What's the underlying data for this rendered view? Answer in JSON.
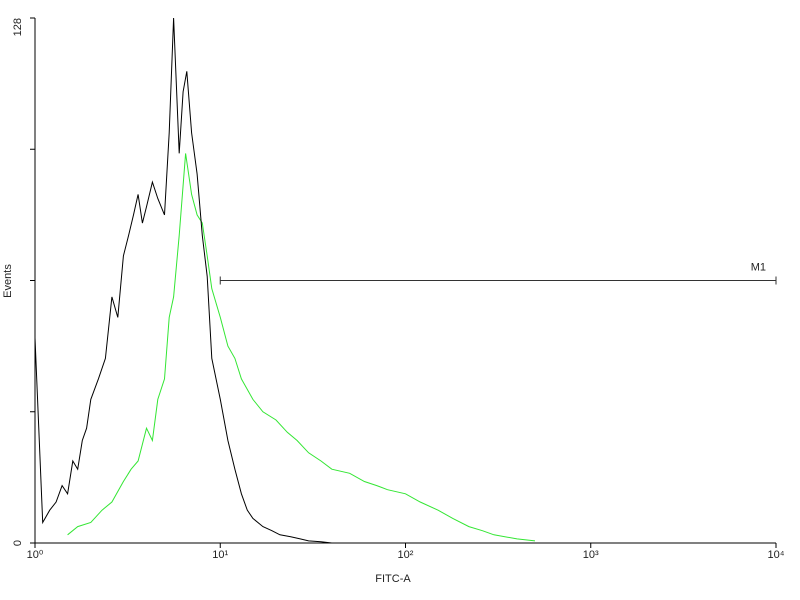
{
  "chart_data": {
    "type": "line",
    "x_label": "FITC-A",
    "y_label": "Events",
    "xscale": "log",
    "xlim": [
      1,
      10000
    ],
    "xticks": [
      {
        "value": 1,
        "label": "10⁰"
      },
      {
        "value": 10,
        "label": "10¹"
      },
      {
        "value": 100,
        "label": "10²"
      },
      {
        "value": 1000,
        "label": "10³"
      },
      {
        "value": 10000,
        "label": "10⁴"
      }
    ],
    "ylim": [
      0,
      128
    ],
    "yticks": [
      0,
      128
    ],
    "yminorticks": [
      32,
      64,
      96
    ],
    "gate": {
      "label": "M1",
      "from": 10,
      "to": 10000,
      "level": 64
    },
    "series": [
      {
        "color": "#000000",
        "x": [
          1,
          1.1,
          1.2,
          1.3,
          1.4,
          1.5,
          1.6,
          1.7,
          1.8,
          1.9,
          2.0,
          2.2,
          2.4,
          2.6,
          2.8,
          3.0,
          3.2,
          3.4,
          3.6,
          3.8,
          4.0,
          4.3,
          4.6,
          5.0,
          5.3,
          5.6,
          6.0,
          6.3,
          6.6,
          7.0,
          7.5,
          8,
          8.5,
          9,
          10,
          11,
          12,
          13,
          14,
          15,
          17,
          19,
          21,
          24,
          27,
          30,
          35,
          40
        ],
        "values": [
          50,
          5,
          8,
          10,
          14,
          12,
          20,
          18,
          25,
          28,
          35,
          40,
          45,
          60,
          55,
          70,
          75,
          80,
          85,
          78,
          82,
          88,
          84,
          80,
          100,
          128,
          95,
          110,
          115,
          100,
          90,
          75,
          65,
          45,
          35,
          25,
          18,
          12,
          8,
          6,
          4,
          3,
          2,
          1.5,
          1,
          0.5,
          0.3,
          0
        ]
      },
      {
        "color": "#33e633",
        "x": [
          1.5,
          1.7,
          2,
          2.3,
          2.6,
          3,
          3.3,
          3.6,
          4,
          4.3,
          4.6,
          5,
          5.3,
          5.6,
          6,
          6.5,
          7,
          7.5,
          8,
          8.5,
          9,
          10,
          11,
          12,
          13,
          15,
          17,
          20,
          23,
          26,
          30,
          35,
          40,
          50,
          60,
          70,
          80,
          100,
          120,
          150,
          180,
          220,
          260,
          300,
          400,
          500
        ],
        "values": [
          2,
          4,
          5,
          8,
          10,
          15,
          18,
          20,
          28,
          25,
          35,
          40,
          55,
          60,
          75,
          95,
          85,
          80,
          78,
          70,
          62,
          55,
          48,
          45,
          40,
          35,
          32,
          30,
          27,
          25,
          22,
          20,
          18,
          17,
          15,
          14,
          13,
          12,
          10,
          8,
          6,
          4,
          3,
          2,
          1,
          0.5
        ]
      }
    ]
  }
}
